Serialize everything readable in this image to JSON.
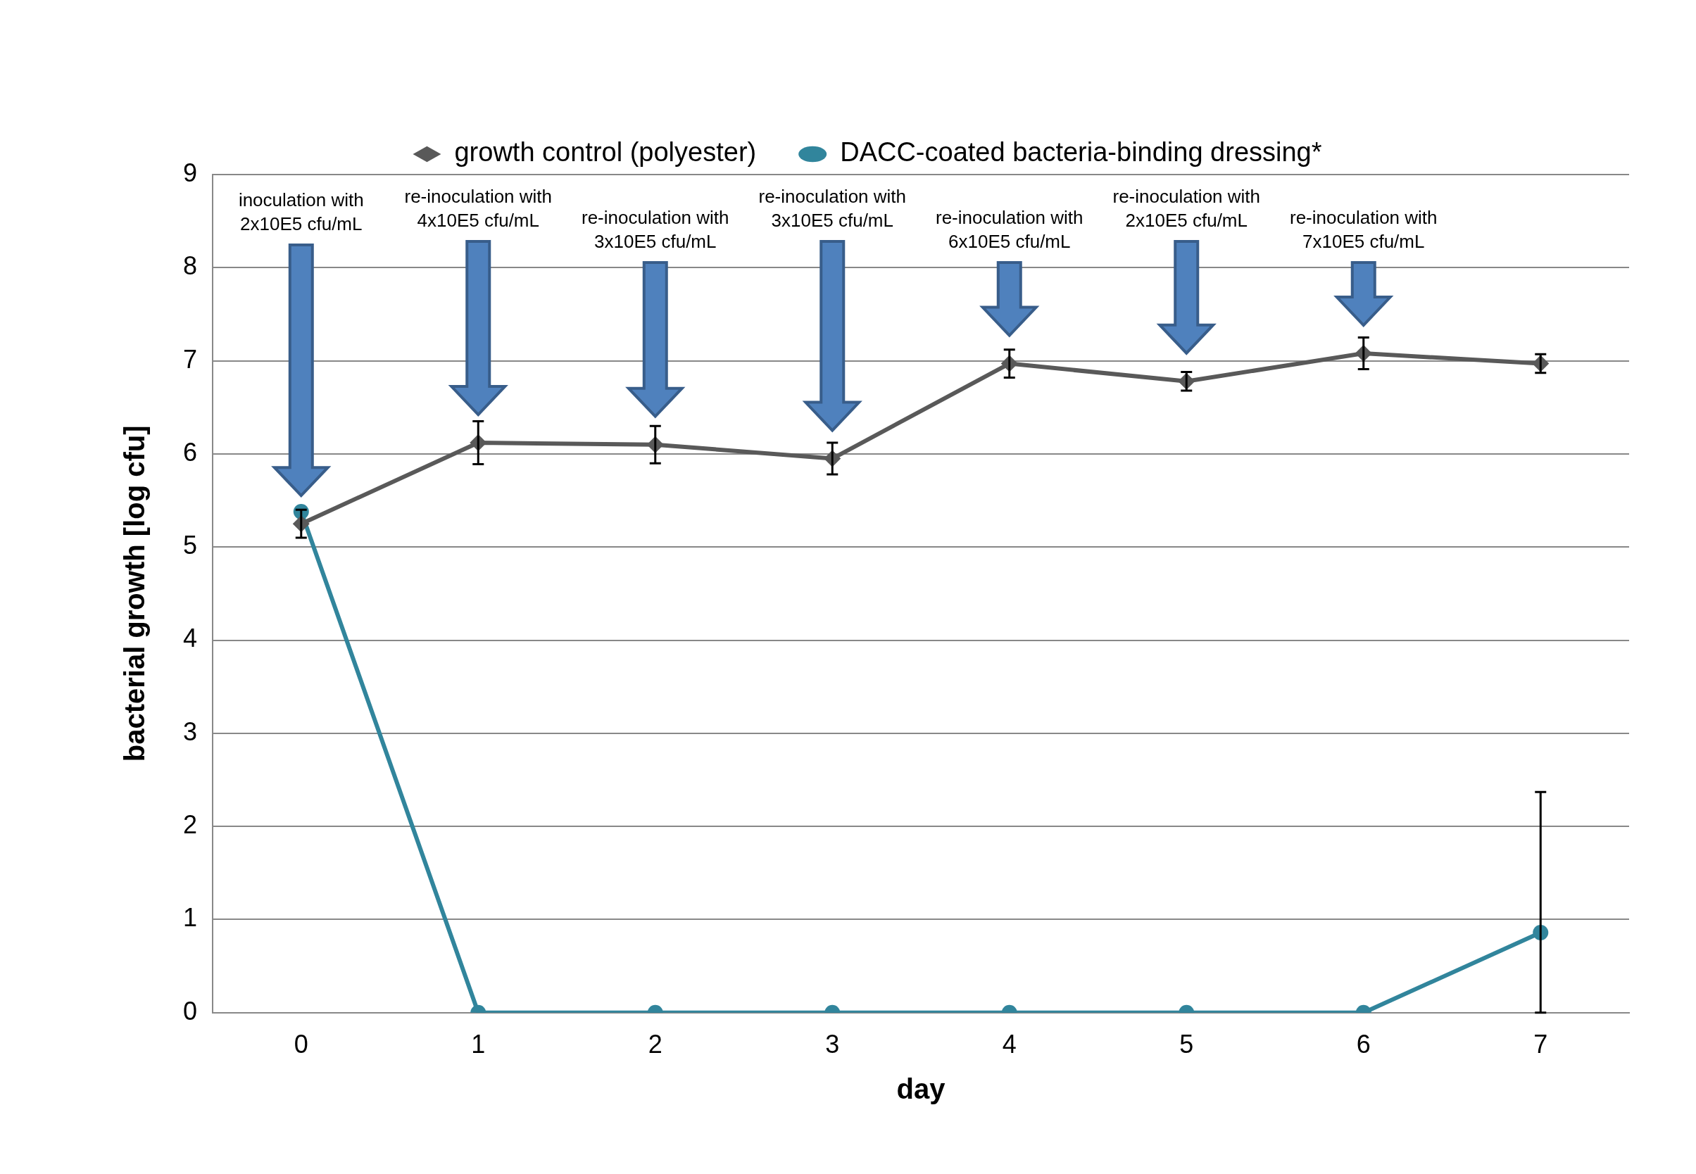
{
  "chart_data": {
    "type": "line",
    "xlabel": "day",
    "ylabel": "bacterial growth [log cfu]",
    "categories": [
      "0",
      "1",
      "2",
      "3",
      "4",
      "5",
      "6",
      "7"
    ],
    "ylim": [
      0,
      9
    ],
    "yticks": [
      0,
      1,
      2,
      3,
      4,
      5,
      6,
      7,
      8,
      9
    ],
    "grid": "y",
    "legend": "top",
    "series": [
      {
        "name": "growth control (polyester)",
        "color": "#595959",
        "marker": "diamond",
        "values": [
          5.25,
          6.12,
          6.1,
          5.95,
          6.97,
          6.78,
          7.08,
          6.97
        ],
        "errors": [
          0.15,
          0.23,
          0.2,
          0.17,
          0.15,
          0.1,
          0.17,
          0.1
        ]
      },
      {
        "name": "DACC-coated bacteria-binding dressing*",
        "color": "#31859c",
        "marker": "circle",
        "values": [
          5.38,
          0,
          0,
          0,
          0,
          0,
          0,
          0.86
        ],
        "errors": [
          null,
          null,
          null,
          null,
          null,
          null,
          null,
          [
            0,
            2.37
          ]
        ]
      }
    ],
    "annotations": [
      "inoculation with\n2x10E5 cfu/mL",
      "re-inoculation with\n4x10E5 cfu/mL",
      "re-inoculation with\n3x10E5 cfu/mL",
      "re-inoculation with\n3x10E5 cfu/mL",
      "re-inoculation with\n6x10E5 cfu/mL",
      "re-inoculation with\n2x10E5 cfu/mL",
      "re-inoculation with\n7x10E5 cfu/mL"
    ]
  }
}
